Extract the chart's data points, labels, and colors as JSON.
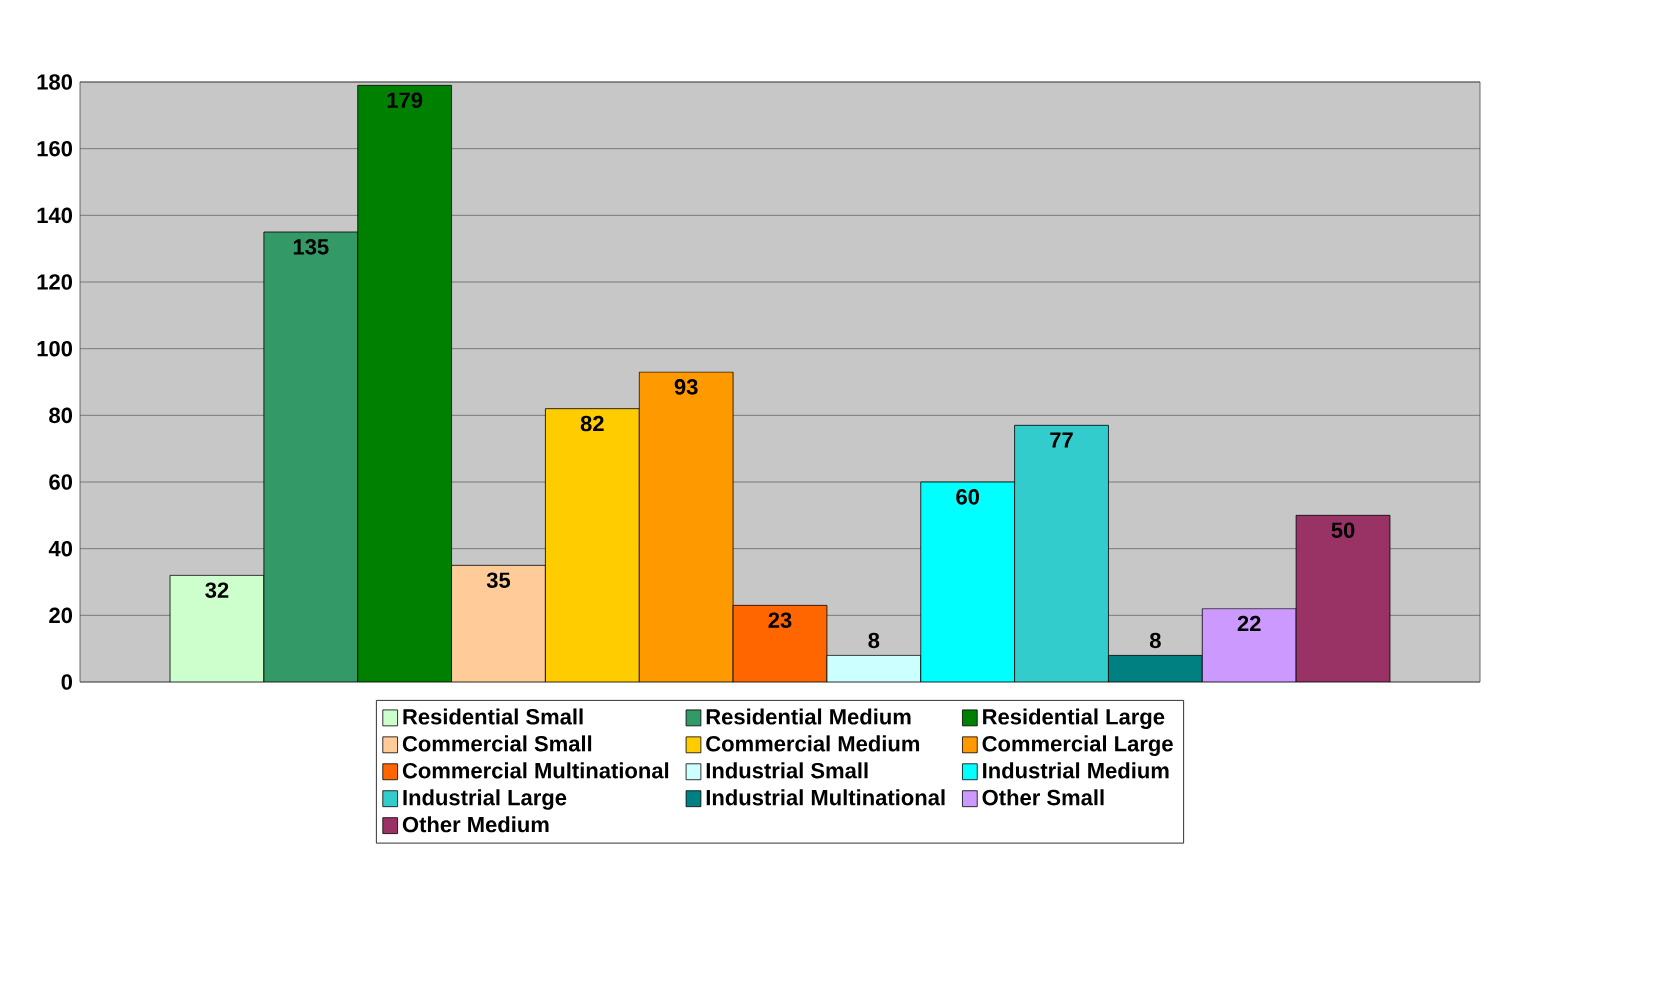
{
  "chart_data": {
    "type": "bar",
    "categories": [
      null
    ],
    "series": [
      {
        "name": "Residential  Small",
        "color": "#ccffcc",
        "values": [
          32
        ]
      },
      {
        "name": "Residential  Medium",
        "color": "#339966",
        "values": [
          135
        ]
      },
      {
        "name": "Residential  Large",
        "color": "#008000",
        "values": [
          179
        ]
      },
      {
        "name": "Commercial  Small",
        "color": "#ffcc99",
        "values": [
          35
        ]
      },
      {
        "name": "Commercial  Medium",
        "color": "#ffcc00",
        "values": [
          82
        ]
      },
      {
        "name": "Commercial  Large",
        "color": "#ff9900",
        "values": [
          93
        ]
      },
      {
        "name": "Commercial  Multinational",
        "color": "#ff6600",
        "values": [
          23
        ]
      },
      {
        "name": "Industrial Small",
        "color": "#ccffff",
        "values": [
          8
        ]
      },
      {
        "name": "Industrial Medium",
        "color": "#00ffff",
        "values": [
          60
        ]
      },
      {
        "name": "Industrial Large",
        "color": "#33cccc",
        "values": [
          77
        ]
      },
      {
        "name": "Industrial Multinational",
        "color": "#008080",
        "values": [
          8
        ]
      },
      {
        "name": "Other Small",
        "color": "#cc99ff",
        "values": [
          22
        ]
      },
      {
        "name": "Other Medium",
        "color": "#993366",
        "values": [
          50
        ]
      }
    ],
    "ylim": [
      0,
      180
    ],
    "yticks": [
      0,
      20,
      40,
      60,
      80,
      100,
      120,
      140,
      160,
      180
    ],
    "grid": "y",
    "legend": "bottom",
    "data_labels": true
  }
}
